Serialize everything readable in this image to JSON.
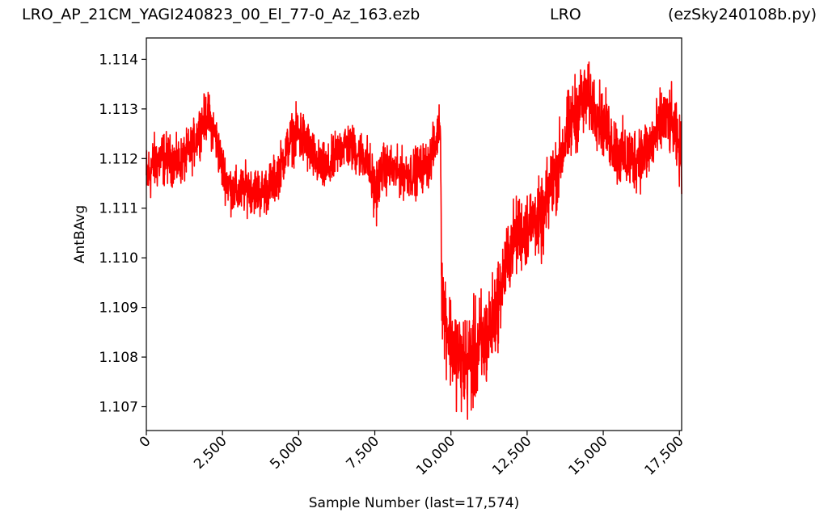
{
  "header": {
    "left": "LRO_AP_21CM_YAGI240823_00_El_77-0_Az_163.ezb",
    "center": "LRO",
    "right": "(ezSky240108b.py)"
  },
  "chart_data": {
    "type": "line",
    "title": "",
    "xlabel": "Sample Number (last=17,574)",
    "ylabel": "AntBAvg",
    "xlim": [
      0,
      17574
    ],
    "ylim": [
      1.10652,
      1.11443
    ],
    "grid": false,
    "series_color": "#ff0000",
    "x_ticks": [
      0,
      2500,
      5000,
      7500,
      10000,
      12500,
      15000,
      17500
    ],
    "x_tick_labels": [
      "0",
      "2,500",
      "5,000",
      "7,500",
      "10,000",
      "12,500",
      "15,000",
      "17,500"
    ],
    "y_ticks": [
      1.107,
      1.108,
      1.109,
      1.11,
      1.111,
      1.112,
      1.113,
      1.114
    ],
    "y_tick_labels": [
      "1.107",
      "1.108",
      "1.109",
      "1.110",
      "1.111",
      "1.112",
      "1.113",
      "1.114"
    ],
    "series": [
      {
        "x": [
          0,
          250,
          500,
          750,
          1000,
          1250,
          1500,
          1750,
          2000,
          2250,
          2500,
          2750,
          3000,
          3250,
          3500,
          3750,
          4000,
          4250,
          4500,
          4750,
          5000,
          5250,
          5500,
          5750,
          6000,
          6250,
          6500,
          6750,
          7000,
          7250,
          7500,
          7750,
          8000,
          8250,
          8500,
          8750,
          9000,
          9250,
          9500,
          9650,
          9700,
          9750,
          10000,
          10250,
          10500,
          10750,
          11000,
          11250,
          11500,
          11750,
          12000,
          12250,
          12500,
          12750,
          13000,
          13250,
          13500,
          13750,
          14000,
          14250,
          14500,
          14750,
          15000,
          15250,
          15500,
          15750,
          16000,
          16250,
          16500,
          16750,
          17000,
          17250,
          17574
        ],
        "mid": [
          1.1116,
          1.1119,
          1.112,
          1.112,
          1.1119,
          1.112,
          1.1122,
          1.1126,
          1.1129,
          1.1125,
          1.1118,
          1.1114,
          1.1113,
          1.1114,
          1.1114,
          1.1113,
          1.1114,
          1.1116,
          1.112,
          1.1124,
          1.1125,
          1.1123,
          1.112,
          1.1118,
          1.1118,
          1.1121,
          1.1123,
          1.1122,
          1.1121,
          1.112,
          1.1113,
          1.1118,
          1.1118,
          1.1117,
          1.1117,
          1.1117,
          1.1118,
          1.1119,
          1.1123,
          1.1128,
          1.1095,
          1.109,
          1.1083,
          1.108,
          1.1078,
          1.108,
          1.1082,
          1.1085,
          1.109,
          1.1097,
          1.1103,
          1.1105,
          1.1106,
          1.1108,
          1.1107,
          1.1114,
          1.1118,
          1.1124,
          1.1128,
          1.1131,
          1.1132,
          1.113,
          1.1127,
          1.1124,
          1.1121,
          1.112,
          1.112,
          1.1121,
          1.1122,
          1.1125,
          1.1128,
          1.1127,
          1.112
        ],
        "amp": [
          0.0007,
          0.0006,
          0.0006,
          0.0005,
          0.0005,
          0.0005,
          0.0005,
          0.0005,
          0.0005,
          0.0005,
          0.0005,
          0.0005,
          0.0005,
          0.0005,
          0.0005,
          0.0005,
          0.0005,
          0.0005,
          0.0005,
          0.0005,
          0.0006,
          0.0006,
          0.0005,
          0.0005,
          0.0005,
          0.0005,
          0.0005,
          0.0005,
          0.0005,
          0.0005,
          0.0007,
          0.0005,
          0.0005,
          0.0005,
          0.0005,
          0.0005,
          0.0005,
          0.0005,
          0.0005,
          0.0004,
          0.001,
          0.001,
          0.001,
          0.001,
          0.0011,
          0.0011,
          0.0012,
          0.001,
          0.0009,
          0.0008,
          0.0008,
          0.0008,
          0.0008,
          0.0008,
          0.0008,
          0.0008,
          0.0008,
          0.0008,
          0.0008,
          0.0008,
          0.0007,
          0.0007,
          0.0007,
          0.0007,
          0.0007,
          0.0007,
          0.0007,
          0.0007,
          0.0007,
          0.0007,
          0.0007,
          0.0007,
          0.0007
        ]
      }
    ]
  }
}
